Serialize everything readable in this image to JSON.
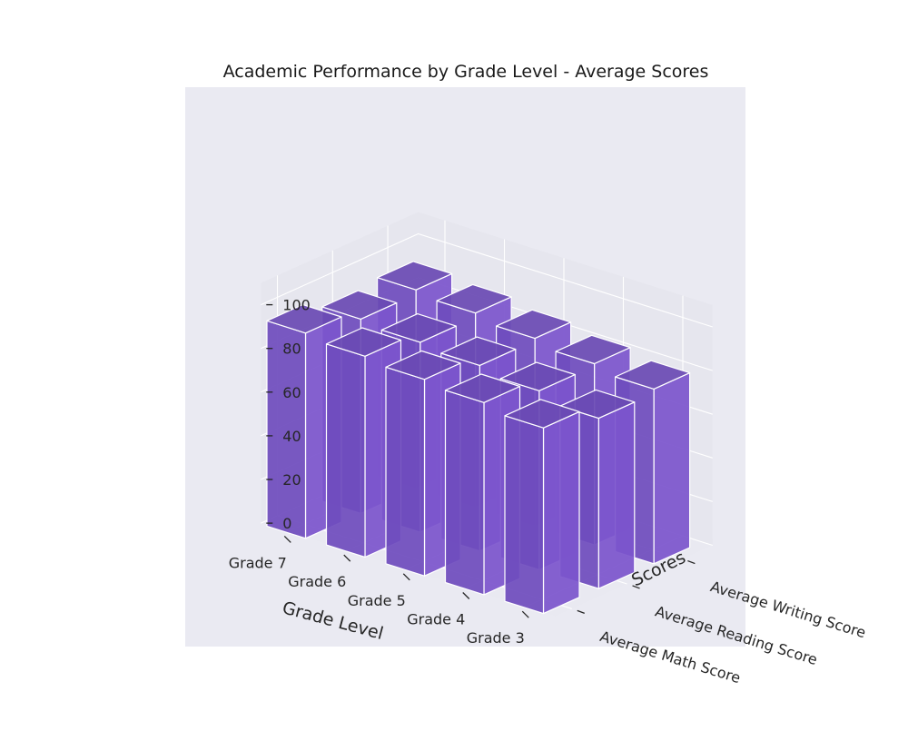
{
  "chart_data": {
    "type": "bar",
    "title": "Academic Performance by Grade Level - Average Scores",
    "xlabel": "Grade Level",
    "ylabel": "Scores",
    "zlabel": "",
    "categories": [
      "Grade 3",
      "Grade 4",
      "Grade 5",
      "Grade 6",
      "Grade 7"
    ],
    "score_types": [
      "Average Math Score",
      "Average Reading Score",
      "Average Writing Score"
    ],
    "series": [
      {
        "name": "Average Math Score",
        "values": [
          85,
          88,
          90,
          92,
          94
        ]
      },
      {
        "name": "Average Reading Score",
        "values": [
          78,
          82,
          85,
          87,
          89
        ]
      },
      {
        "name": "Average Writing Score",
        "values": [
          80,
          83,
          86,
          89,
          91
        ]
      }
    ],
    "zticks": [
      0,
      20,
      40,
      60,
      80,
      100
    ],
    "zlim": [
      0,
      110
    ],
    "colors": {
      "bar_top": "#6a4ab4",
      "bar_front": "#7c55cc",
      "bar_side": "#6f4cbd",
      "edge": "#ffffff",
      "pane_back": "#e6e6ee",
      "pane_floor": "#e9e9f1",
      "axes_bg": "#eaeaf2",
      "grid": "#ffffff"
    }
  }
}
